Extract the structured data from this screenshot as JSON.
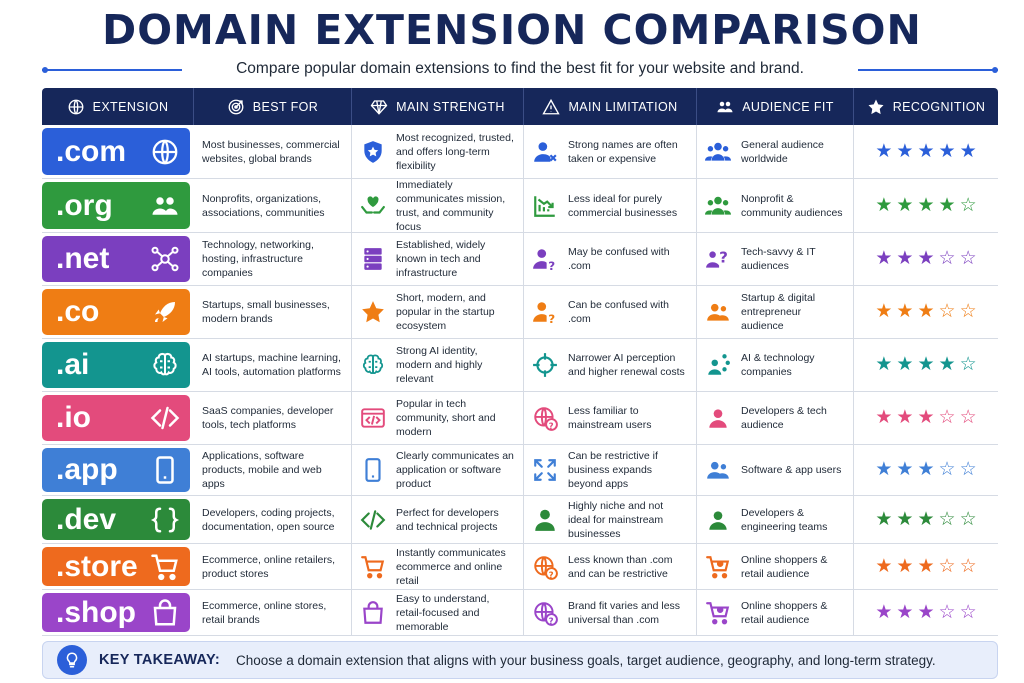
{
  "title": "DOMAIN EXTENSION COMPARISON",
  "subtitle": "Compare popular domain extensions to find the best fit for your website and brand.",
  "colors": {
    "navy": "#16275a",
    "accent": "#2b5fd9"
  },
  "headers": [
    {
      "label": "EXTENSION",
      "icon": "globe-icon"
    },
    {
      "label": "BEST FOR",
      "icon": "target-icon"
    },
    {
      "label": "MAIN STRENGTH",
      "icon": "diamond-icon"
    },
    {
      "label": "MAIN LIMITATION",
      "icon": "warning-icon"
    },
    {
      "label": "AUDIENCE FIT",
      "icon": "people-icon"
    },
    {
      "label": "RECOGNITION",
      "icon": "star-icon"
    }
  ],
  "rows": [
    {
      "ext": ".com",
      "color": "#2b5fd9",
      "ext_icon": "globe-icon",
      "best_for": "Most businesses, commercial websites, global brands",
      "strength": "Most recognized, trusted, and offers long-term flexibility",
      "strength_icon": "shield-star-icon",
      "limitation": "Strong names are often taken or expensive",
      "limitation_icon": "user-x-icon",
      "audience": "General audience worldwide",
      "audience_icon": "group-icon",
      "stars": 5
    },
    {
      "ext": ".org",
      "color": "#2f9a3e",
      "ext_icon": "people-icon",
      "best_for": "Nonprofits, organizations, associations, communities",
      "strength": "Immediately communicates mission, trust, and community focus",
      "strength_icon": "heart-hands-icon",
      "limitation": "Less ideal for purely commercial businesses",
      "limitation_icon": "bar-chart-down-icon",
      "audience": "Nonprofit & community audiences",
      "audience_icon": "group-icon",
      "stars": 4
    },
    {
      "ext": ".net",
      "color": "#7b3fbf",
      "ext_icon": "network-icon",
      "best_for": "Technology, networking, hosting, infrastructure companies",
      "strength": "Established, widely known in tech and infrastructure",
      "strength_icon": "server-icon",
      "limitation": "May be confused with .com",
      "limitation_icon": "user-question-icon",
      "audience": "Tech-savvy & IT audiences",
      "audience_icon": "users-question-icon",
      "stars": 3
    },
    {
      "ext": ".co",
      "color": "#ef7d14",
      "ext_icon": "rocket-icon",
      "best_for": "Startups, small businesses, modern brands",
      "strength": "Short, modern, and popular in the startup ecosystem",
      "strength_icon": "star-icon",
      "limitation": "Can be confused with .com",
      "limitation_icon": "user-question-icon",
      "audience": "Startup & digital entrepreneur audience",
      "audience_icon": "users-icon",
      "stars": 3
    },
    {
      "ext": ".ai",
      "color": "#13958f",
      "ext_icon": "brain-icon",
      "best_for": "AI startups, machine learning, AI tools, automation platforms",
      "strength": "Strong AI identity, modern and highly relevant",
      "strength_icon": "brain-icon",
      "limitation": "Narrower AI perception and higher renewal costs",
      "limitation_icon": "crosshair-icon",
      "audience": "AI & technology companies",
      "audience_icon": "user-network-icon",
      "stars": 4
    },
    {
      "ext": ".io",
      "color": "#e34b7c",
      "ext_icon": "code-icon",
      "best_for": "SaaS companies, developer tools, tech platforms",
      "strength": "Popular in tech community, short and modern",
      "strength_icon": "code-window-icon",
      "limitation": "Less familiar to mainstream users",
      "limitation_icon": "globe-question-icon",
      "audience": "Developers & tech audience",
      "audience_icon": "developer-icon",
      "stars": 3
    },
    {
      "ext": ".app",
      "color": "#3f7fd6",
      "ext_icon": "phone-icon",
      "best_for": "Applications, software products, mobile and web apps",
      "strength": "Clearly communicates an application or software product",
      "strength_icon": "phone-icon",
      "limitation": "Can be restrictive if business expands beyond apps",
      "limitation_icon": "expand-icon",
      "audience": "Software & app users",
      "audience_icon": "users-icon",
      "stars": 3
    },
    {
      "ext": ".dev",
      "color": "#2c8a3a",
      "ext_icon": "braces-icon",
      "best_for": "Developers, coding projects, documentation, open source",
      "strength": "Perfect for developers and technical projects",
      "strength_icon": "code-icon",
      "limitation": "Highly niche and not ideal for mainstream businesses",
      "limitation_icon": "user-icon",
      "audience": "Developers & engineering teams",
      "audience_icon": "developer-icon",
      "stars": 3
    },
    {
      "ext": ".store",
      "color": "#ee6a1e",
      "ext_icon": "cart-icon",
      "best_for": "Ecommerce, online retailers, product stores",
      "strength": "Instantly communicates ecommerce and online retail",
      "strength_icon": "cart-icon",
      "limitation": "Less known than .com and can be restrictive",
      "limitation_icon": "globe-question-icon",
      "audience": "Online shoppers & retail audience",
      "audience_icon": "cart-user-icon",
      "stars": 3
    },
    {
      "ext": ".shop",
      "color": "#9a45c9",
      "ext_icon": "bag-icon",
      "best_for": "Ecommerce, online stores, retail brands",
      "strength": "Easy to understand, retail-focused and memorable",
      "strength_icon": "bag-icon",
      "limitation": "Brand fit varies and less universal than .com",
      "limitation_icon": "globe-question-icon",
      "audience": "Online shoppers & retail audience",
      "audience_icon": "cart-user-icon",
      "stars": 3
    }
  ],
  "takeaway": {
    "label": "KEY TAKEAWAY:",
    "text": "Choose a domain extension that aligns with your business goals, target audience, geography, and long-term strategy.",
    "icon": "lightbulb-icon"
  }
}
